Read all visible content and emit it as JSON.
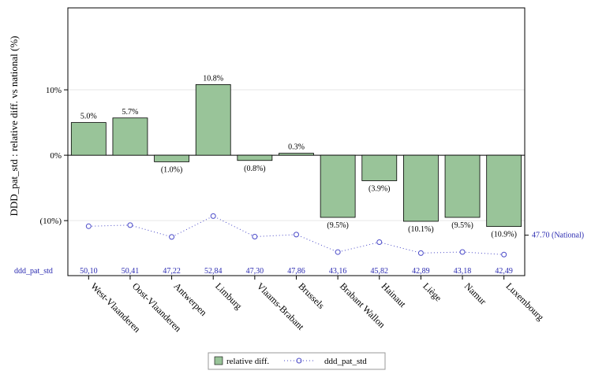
{
  "chart_data": {
    "type": "bar",
    "ylabel": "DDD_pat_std : relative diff. vs national (%)",
    "categories": [
      "West-Vlaanderen",
      "Oost-Vlaanderen",
      "Antwerpen",
      "Limburg",
      "Vlaams-Brabant",
      "Brussels",
      "Brabant Wallon",
      "Hainaut",
      "Liège",
      "Namur",
      "Luxembourg"
    ],
    "ylim": [
      -16,
      20
    ],
    "yticks": [
      -10,
      0,
      10
    ],
    "ytick_labels": [
      "(10%)",
      "0%",
      "10%"
    ],
    "grid": true,
    "bar_color": "#99c499",
    "series": [
      {
        "name": "relative diff.",
        "type": "bar",
        "values": [
          5.0,
          5.7,
          -1.0,
          10.8,
          -0.8,
          0.3,
          -9.5,
          -3.9,
          -10.1,
          -9.5,
          -10.9
        ],
        "labels": [
          "5.0%",
          "5.7%",
          "(1.0%)",
          "10.8%",
          "(0.8%)",
          "0.3%",
          "(9.5%)",
          "(3.9%)",
          "(10.1%)",
          "(9.5%)",
          "(10.9%)"
        ]
      },
      {
        "name": "ddd_pat_std",
        "type": "line",
        "style": "dotted",
        "marker": "open-circle",
        "color": "#4a4ac8",
        "values": [
          50.1,
          50.41,
          47.22,
          52.84,
          47.3,
          47.86,
          43.16,
          45.82,
          42.89,
          43.18,
          42.49
        ],
        "labels": [
          "50,10",
          "50,41",
          "47,22",
          "52,84",
          "47,30",
          "47,86",
          "43,16",
          "45,82",
          "42,89",
          "43,18",
          "42,49"
        ],
        "ylim": [
          40,
          58
        ]
      }
    ],
    "reference_line": {
      "value": 47.7,
      "label": "47.70 (National)"
    },
    "table_row_label": "ddd_pat_std",
    "legend": {
      "position": "bottom"
    }
  }
}
